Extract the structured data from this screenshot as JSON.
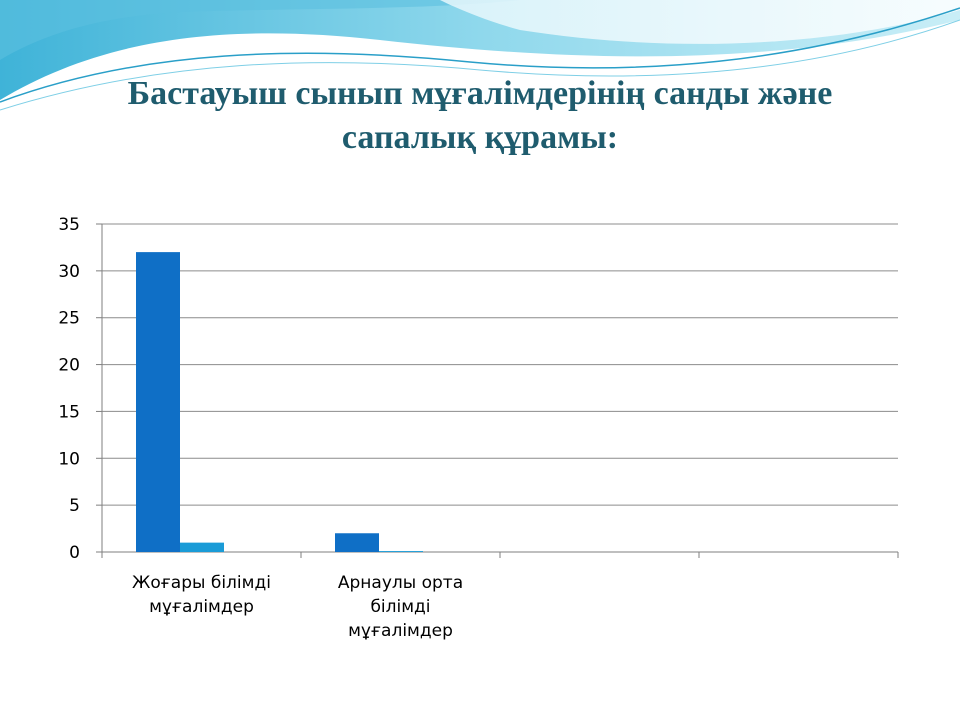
{
  "slide": {
    "title_line1": "Бастауыш сынып мұғалімдерінің санды және",
    "title_line2": "сапалық құрамы:",
    "colors": {
      "title": "#1f5c6e",
      "wave_light": "#b9e6f2",
      "wave_mid": "#6ccbe4"
    }
  },
  "chart_data": {
    "type": "bar",
    "categories": [
      [
        "Жоғары білімді",
        "мұғалімдер"
      ],
      [
        "Арнаулы орта",
        "білімді",
        "мұғалімдер"
      ],
      [],
      []
    ],
    "series": [
      {
        "values": [
          32,
          2,
          null,
          null
        ],
        "color": "#0f6fc6"
      },
      {
        "values": [
          1,
          0.1,
          null,
          null
        ],
        "color": "#1a9bd7"
      }
    ],
    "yticks": [
      0,
      5,
      10,
      15,
      20,
      25,
      30,
      35
    ],
    "ylim": [
      0,
      35
    ],
    "grid": true,
    "title": "",
    "xlabel": "",
    "ylabel": ""
  }
}
